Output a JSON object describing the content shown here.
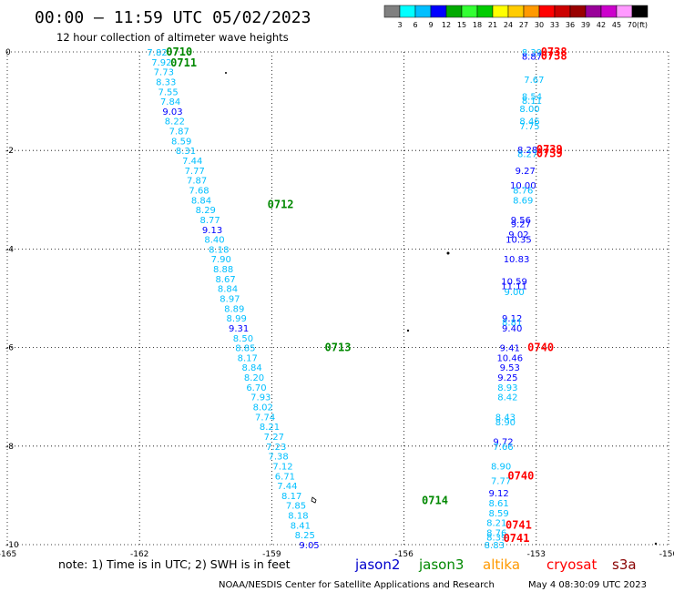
{
  "title": "00:00 – 11:59 UTC 05/02/2023",
  "subtitle": "12 hour collection of altimeter wave heights",
  "colorbar": {
    "unit": "(ft)",
    "colors": [
      "#808080",
      "#00ffff",
      "#00bfff",
      "#0000ff",
      "#00aa00",
      "#33ff33",
      "#00cc00",
      "#ffff00",
      "#ffcc00",
      "#ff9900",
      "#ff0000",
      "#cc0000",
      "#990000",
      "#990099",
      "#cc00cc",
      "#ff99ff",
      "#000000"
    ],
    "labels": [
      "3",
      "6",
      "9",
      "12",
      "15",
      "18",
      "21",
      "24",
      "27",
      "30",
      "33",
      "36",
      "39",
      "42",
      "45",
      "70"
    ]
  },
  "note": "note:  1) Time is in UTC;  2) SWH is in feet",
  "satellites": [
    {
      "name": "jason2",
      "color": "#0000cc"
    },
    {
      "name": "jason3",
      "color": "#008800"
    },
    {
      "name": "altika",
      "color": "#ff9900"
    },
    {
      "name": "cryosat",
      "color": "#ff0000"
    },
    {
      "name": "s3a",
      "color": "#880000"
    }
  ],
  "credit": "NOAA/NESDIS Center for Satellite Applications and Research",
  "timestamp": "May  4 08:30:09 UTC 2023",
  "chart_data": {
    "type": "scatter",
    "title": "00:00 – 11:59 UTC 05/02/2023",
    "xlim": [
      -165,
      -150
    ],
    "ylim": [
      -10,
      0
    ],
    "x_ticks": [
      "-165",
      "-162",
      "-159",
      "-156",
      "-153",
      "-150"
    ],
    "y_ticks": [
      "0",
      "-2",
      "-4",
      "-6",
      "-8",
      "-10"
    ],
    "grid": true,
    "tracks": [
      {
        "pass_labels": [
          {
            "text": "0710",
            "lon": -161.1,
            "lat": 0.0,
            "color": "#008800"
          },
          {
            "text": "0711",
            "lon": -161.0,
            "lat": -0.22,
            "color": "#008800"
          },
          {
            "text": "0712",
            "lon": -158.8,
            "lat": -3.1,
            "color": "#008800"
          },
          {
            "text": "0713",
            "lon": -157.5,
            "lat": -6.0,
            "color": "#008800"
          },
          {
            "text": "0714",
            "lon": -155.3,
            "lat": -9.1,
            "color": "#008800"
          }
        ],
        "points": [
          {
            "lon": -161.6,
            "lat": 0.0,
            "v": "7.82",
            "c": "#00bfff"
          },
          {
            "lon": -161.5,
            "lat": -0.2,
            "v": "7.92",
            "c": "#00bfff"
          },
          {
            "lon": -161.45,
            "lat": -0.4,
            "v": "7.73",
            "c": "#00bfff"
          },
          {
            "lon": -161.4,
            "lat": -0.6,
            "v": "8.33",
            "c": "#00bfff"
          },
          {
            "lon": -161.35,
            "lat": -0.8,
            "v": "7.55",
            "c": "#00bfff"
          },
          {
            "lon": -161.3,
            "lat": -1.0,
            "v": "7.84",
            "c": "#00bfff"
          },
          {
            "lon": -161.25,
            "lat": -1.2,
            "v": "9.03",
            "c": "#0000ff"
          },
          {
            "lon": -161.2,
            "lat": -1.4,
            "v": "8.22",
            "c": "#00bfff"
          },
          {
            "lon": -161.1,
            "lat": -1.6,
            "v": "7.87",
            "c": "#00bfff"
          },
          {
            "lon": -161.05,
            "lat": -1.8,
            "v": "8.59",
            "c": "#00bfff"
          },
          {
            "lon": -160.95,
            "lat": -2.0,
            "v": "8.31",
            "c": "#00bfff"
          },
          {
            "lon": -160.8,
            "lat": -2.2,
            "v": "7.44",
            "c": "#00bfff"
          },
          {
            "lon": -160.75,
            "lat": -2.4,
            "v": "7.77",
            "c": "#00bfff"
          },
          {
            "lon": -160.7,
            "lat": -2.6,
            "v": "7.87",
            "c": "#00bfff"
          },
          {
            "lon": -160.65,
            "lat": -2.8,
            "v": "7.68",
            "c": "#00bfff"
          },
          {
            "lon": -160.6,
            "lat": -3.0,
            "v": "8.84",
            "c": "#00bfff"
          },
          {
            "lon": -160.5,
            "lat": -3.2,
            "v": "8.29",
            "c": "#00bfff"
          },
          {
            "lon": -160.4,
            "lat": -3.4,
            "v": "8.77",
            "c": "#00bfff"
          },
          {
            "lon": -160.35,
            "lat": -3.6,
            "v": "9.13",
            "c": "#0000ff"
          },
          {
            "lon": -160.3,
            "lat": -3.8,
            "v": "8.40",
            "c": "#00bfff"
          },
          {
            "lon": -160.2,
            "lat": -4.0,
            "v": "8.18",
            "c": "#00bfff"
          },
          {
            "lon": -160.15,
            "lat": -4.2,
            "v": "7.90",
            "c": "#00bfff"
          },
          {
            "lon": -160.1,
            "lat": -4.4,
            "v": "8.88",
            "c": "#00bfff"
          },
          {
            "lon": -160.05,
            "lat": -4.6,
            "v": "8.67",
            "c": "#00bfff"
          },
          {
            "lon": -160.0,
            "lat": -4.8,
            "v": "8.84",
            "c": "#00bfff"
          },
          {
            "lon": -159.95,
            "lat": -5.0,
            "v": "8.97",
            "c": "#00bfff"
          },
          {
            "lon": -159.85,
            "lat": -5.2,
            "v": "8.89",
            "c": "#00bfff"
          },
          {
            "lon": -159.8,
            "lat": -5.4,
            "v": "8.99",
            "c": "#00bfff"
          },
          {
            "lon": -159.75,
            "lat": -5.6,
            "v": "9.31",
            "c": "#0000ff"
          },
          {
            "lon": -159.65,
            "lat": -5.8,
            "v": "8.50",
            "c": "#00bfff"
          },
          {
            "lon": -159.6,
            "lat": -6.0,
            "v": "8.85",
            "c": "#00bfff"
          },
          {
            "lon": -159.55,
            "lat": -6.2,
            "v": "8.17",
            "c": "#00bfff"
          },
          {
            "lon": -159.45,
            "lat": -6.4,
            "v": "8.84",
            "c": "#00bfff"
          },
          {
            "lon": -159.4,
            "lat": -6.6,
            "v": "8.20",
            "c": "#00bfff"
          },
          {
            "lon": -159.35,
            "lat": -6.8,
            "v": "6.70",
            "c": "#00bfff"
          },
          {
            "lon": -159.25,
            "lat": -7.0,
            "v": "7.93",
            "c": "#00bfff"
          },
          {
            "lon": -159.2,
            "lat": -7.2,
            "v": "8.02",
            "c": "#00bfff"
          },
          {
            "lon": -159.15,
            "lat": -7.4,
            "v": "7.74",
            "c": "#00bfff"
          },
          {
            "lon": -159.05,
            "lat": -7.6,
            "v": "8.21",
            "c": "#00bfff"
          },
          {
            "lon": -158.95,
            "lat": -7.8,
            "v": "7.27",
            "c": "#00bfff"
          },
          {
            "lon": -158.9,
            "lat": -8.0,
            "v": "7.23",
            "c": "#00bfff"
          },
          {
            "lon": -158.85,
            "lat": -8.2,
            "v": "7.38",
            "c": "#00bfff"
          },
          {
            "lon": -158.75,
            "lat": -8.4,
            "v": "7.12",
            "c": "#00bfff"
          },
          {
            "lon": -158.7,
            "lat": -8.6,
            "v": "6.71",
            "c": "#00bfff"
          },
          {
            "lon": -158.65,
            "lat": -8.8,
            "v": "7.44",
            "c": "#00bfff"
          },
          {
            "lon": -158.55,
            "lat": -9.0,
            "v": "8.17",
            "c": "#00bfff"
          },
          {
            "lon": -158.45,
            "lat": -9.2,
            "v": "7.85",
            "c": "#00bfff"
          },
          {
            "lon": -158.4,
            "lat": -9.4,
            "v": "8.18",
            "c": "#00bfff"
          },
          {
            "lon": -158.35,
            "lat": -9.6,
            "v": "8.41",
            "c": "#00bfff"
          },
          {
            "lon": -158.25,
            "lat": -9.8,
            "v": "8.25",
            "c": "#00bfff"
          },
          {
            "lon": -158.15,
            "lat": -10.0,
            "v": "9.05",
            "c": "#0000ff"
          }
        ]
      },
      {
        "pass_labels": [
          {
            "text": "0738",
            "lon": -152.6,
            "lat": 0.0,
            "color": "#ff0000"
          },
          {
            "text": "0738",
            "lon": -152.6,
            "lat": -0.08,
            "color": "#ff0000"
          },
          {
            "text": "0739",
            "lon": -152.7,
            "lat": -1.98,
            "color": "#ff0000"
          },
          {
            "text": "0739",
            "lon": -152.7,
            "lat": -2.06,
            "color": "#ff0000"
          },
          {
            "text": "0740",
            "lon": -152.9,
            "lat": -6.0,
            "color": "#ff0000"
          },
          {
            "text": "0740",
            "lon": -153.35,
            "lat": -8.6,
            "color": "#ff0000"
          },
          {
            "text": "0741",
            "lon": -153.4,
            "lat": -9.6,
            "color": "#ff0000"
          },
          {
            "text": "0741",
            "lon": -153.45,
            "lat": -9.87,
            "color": "#ff0000"
          }
        ],
        "points": [
          {
            "lon": -153.1,
            "lat": 0.0,
            "v": "8.39",
            "c": "#00bfff"
          },
          {
            "lon": -153.1,
            "lat": -0.08,
            "v": "8.87",
            "c": "#0000ff"
          },
          {
            "lon": -153.05,
            "lat": -0.55,
            "v": "7.67",
            "c": "#00bfff"
          },
          {
            "lon": -153.1,
            "lat": -0.9,
            "v": "8.54",
            "c": "#00bfff"
          },
          {
            "lon": -153.1,
            "lat": -0.98,
            "v": "8.11",
            "c": "#00bfff"
          },
          {
            "lon": -153.15,
            "lat": -1.15,
            "v": "8.00",
            "c": "#00bfff"
          },
          {
            "lon": -153.15,
            "lat": -1.4,
            "v": "8.46",
            "c": "#00bfff"
          },
          {
            "lon": -153.15,
            "lat": -1.5,
            "v": "7.75",
            "c": "#00bfff"
          },
          {
            "lon": -153.2,
            "lat": -1.98,
            "v": "8.28",
            "c": "#0000ff"
          },
          {
            "lon": -153.2,
            "lat": -2.06,
            "v": "8.27",
            "c": "#00bfff"
          },
          {
            "lon": -153.25,
            "lat": -2.4,
            "v": "9.27",
            "c": "#0000ff"
          },
          {
            "lon": -153.3,
            "lat": -2.7,
            "v": "10.00",
            "c": "#0000ff"
          },
          {
            "lon": -153.3,
            "lat": -2.8,
            "v": "8.76",
            "c": "#00bfff"
          },
          {
            "lon": -153.3,
            "lat": -3.0,
            "v": "8.69",
            "c": "#00bfff"
          },
          {
            "lon": -153.35,
            "lat": -3.4,
            "v": "9.56",
            "c": "#0000ff"
          },
          {
            "lon": -153.35,
            "lat": -3.48,
            "v": "9.27",
            "c": "#0000ff"
          },
          {
            "lon": -153.4,
            "lat": -3.7,
            "v": "9.02",
            "c": "#0000ff"
          },
          {
            "lon": -153.4,
            "lat": -3.8,
            "v": "10.35",
            "c": "#0000ff"
          },
          {
            "lon": -153.45,
            "lat": -4.2,
            "v": "10.83",
            "c": "#0000ff"
          },
          {
            "lon": -153.5,
            "lat": -4.65,
            "v": "10.59",
            "c": "#0000ff"
          },
          {
            "lon": -153.5,
            "lat": -4.74,
            "v": "11.11",
            "c": "#0000ff"
          },
          {
            "lon": -153.5,
            "lat": -4.86,
            "v": "9.00",
            "c": "#00bfff"
          },
          {
            "lon": -153.55,
            "lat": -5.4,
            "v": "9.12",
            "c": "#0000ff"
          },
          {
            "lon": -153.55,
            "lat": -5.48,
            "v": "8.81",
            "c": "#00bfff"
          },
          {
            "lon": -153.55,
            "lat": -5.6,
            "v": "9.40",
            "c": "#0000ff"
          },
          {
            "lon": -153.6,
            "lat": -6.0,
            "v": "9.41",
            "c": "#0000ff"
          },
          {
            "lon": -153.6,
            "lat": -6.2,
            "v": "10.46",
            "c": "#0000ff"
          },
          {
            "lon": -153.6,
            "lat": -6.4,
            "v": "9.53",
            "c": "#0000ff"
          },
          {
            "lon": -153.65,
            "lat": -6.6,
            "v": "9.25",
            "c": "#0000ff"
          },
          {
            "lon": -153.65,
            "lat": -6.8,
            "v": "8.93",
            "c": "#00bfff"
          },
          {
            "lon": -153.65,
            "lat": -7.0,
            "v": "8.42",
            "c": "#00bfff"
          },
          {
            "lon": -153.7,
            "lat": -7.4,
            "v": "8.43",
            "c": "#00bfff"
          },
          {
            "lon": -153.7,
            "lat": -7.5,
            "v": "8.90",
            "c": "#00bfff"
          },
          {
            "lon": -153.75,
            "lat": -7.9,
            "v": "9.72",
            "c": "#0000ff"
          },
          {
            "lon": -153.75,
            "lat": -8.0,
            "v": "7.66",
            "c": "#00bfff"
          },
          {
            "lon": -153.8,
            "lat": -8.4,
            "v": "8.90",
            "c": "#00bfff"
          },
          {
            "lon": -153.8,
            "lat": -8.7,
            "v": "7.77",
            "c": "#00bfff"
          },
          {
            "lon": -153.85,
            "lat": -8.95,
            "v": "9.12",
            "c": "#0000ff"
          },
          {
            "lon": -153.85,
            "lat": -9.15,
            "v": "8.61",
            "c": "#00bfff"
          },
          {
            "lon": -153.85,
            "lat": -9.35,
            "v": "8.59",
            "c": "#00bfff"
          },
          {
            "lon": -153.9,
            "lat": -9.55,
            "v": "8.21",
            "c": "#00bfff"
          },
          {
            "lon": -153.9,
            "lat": -9.75,
            "v": "8.76",
            "c": "#00bfff"
          },
          {
            "lon": -153.9,
            "lat": -9.84,
            "v": "8.39",
            "c": "#00bfff"
          },
          {
            "lon": -153.95,
            "lat": -10.0,
            "v": "8.83",
            "c": "#00bfff"
          }
        ]
      }
    ]
  }
}
